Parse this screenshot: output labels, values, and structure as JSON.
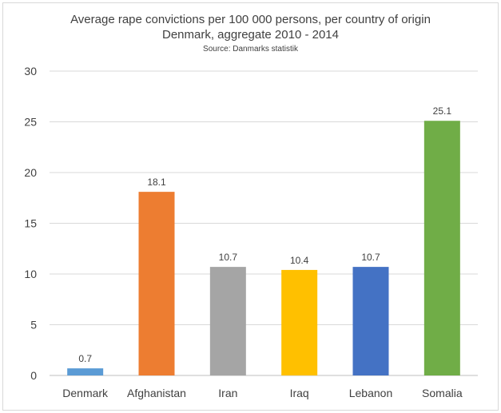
{
  "chart_data": {
    "type": "bar",
    "title": "Average rape convictions per 100 000 persons, per country of origin",
    "subtitle": "Denmark, aggregate 2010 - 2014",
    "source": "Source: Danmarks statistik",
    "categories": [
      "Denmark",
      "Afghanistan",
      "Iran",
      "Iraq",
      "Lebanon",
      "Somalia"
    ],
    "values": [
      0.7,
      18.1,
      10.7,
      10.4,
      10.7,
      25.1
    ],
    "value_labels": [
      "0.7",
      "18.1",
      "10.7",
      "10.4",
      "10.7",
      "25.1"
    ],
    "colors": [
      "#5b9bd5",
      "#ed7d31",
      "#a5a5a5",
      "#ffc000",
      "#4472c4",
      "#70ad47"
    ],
    "ylim": [
      0,
      30
    ],
    "yticks": [
      0,
      5,
      10,
      15,
      20,
      25,
      30
    ],
    "grid": true,
    "legend": "none"
  }
}
